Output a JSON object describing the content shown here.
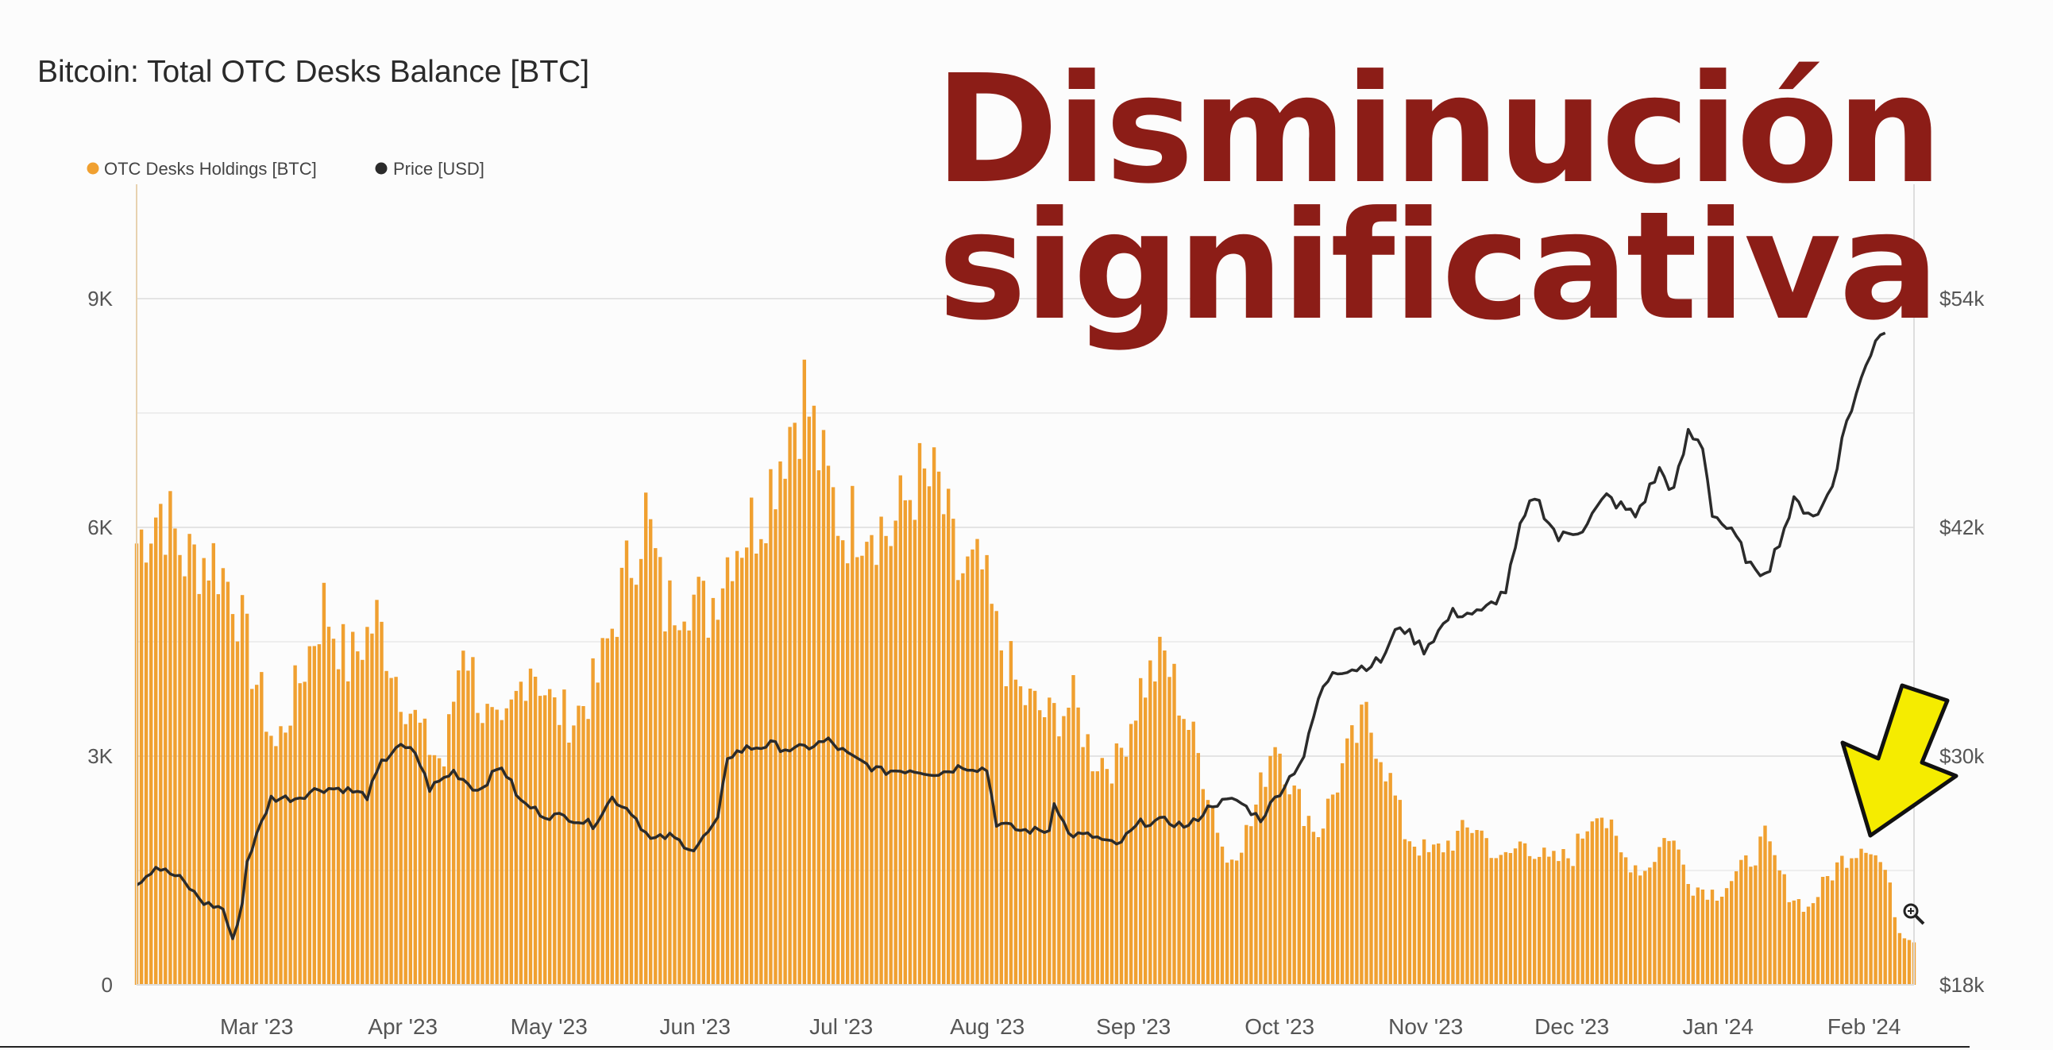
{
  "overlay": {
    "line1": "Disminución",
    "line2": "significativa"
  },
  "colors": {
    "bars": "#f0a030",
    "price_line": "#2b2b2b",
    "overlay_text": "#8c1d17",
    "arrow_fill": "#f5ec00",
    "grid": "#e4e4e4"
  },
  "icons": [
    "arrow-annotation-icon",
    "zoom-cursor-icon"
  ],
  "chart_data": {
    "type": "bar",
    "title": "Bitcoin: Total OTC Desks Balance [BTC]",
    "legend": {
      "placement": "top-left"
    },
    "grid": true,
    "x_ticks": [
      "Mar '23",
      "Apr '23",
      "May '23",
      "Jun '23",
      "Jul '23",
      "Aug '23",
      "Sep '23",
      "Oct '23",
      "Nov '23",
      "Dec '23",
      "Jan '24",
      "Feb '24"
    ],
    "y_left": {
      "ticks": [
        "0",
        "3K",
        "6K",
        "9K"
      ],
      "range": [
        0,
        10500
      ]
    },
    "y_right": {
      "ticks": [
        "$18k",
        "$30k",
        "$42k",
        "$54k"
      ],
      "range": [
        18000,
        60000
      ]
    },
    "x_range": [
      "2023-02-19",
      "2024-02-24"
    ],
    "series": [
      {
        "name": "OTC Desks Holdings [BTC]",
        "type": "bar",
        "axis": "left",
        "knots": [
          [
            "2023-02-19",
            5800
          ],
          [
            "2023-02-24",
            6300
          ],
          [
            "2023-03-01",
            5600
          ],
          [
            "2023-03-07",
            5600
          ],
          [
            "2023-03-11",
            5200
          ],
          [
            "2023-03-15",
            4200
          ],
          [
            "2023-03-20",
            3100
          ],
          [
            "2023-03-25",
            4000
          ],
          [
            "2023-03-30",
            5000
          ],
          [
            "2023-04-04",
            4200
          ],
          [
            "2023-04-10",
            4800
          ],
          [
            "2023-04-15",
            3900
          ],
          [
            "2023-04-20",
            3200
          ],
          [
            "2023-04-24",
            2900
          ],
          [
            "2023-04-28",
            4600
          ],
          [
            "2023-05-02",
            3600
          ],
          [
            "2023-05-06",
            3200
          ],
          [
            "2023-05-12",
            4300
          ],
          [
            "2023-05-17",
            3600
          ],
          [
            "2023-05-21",
            3500
          ],
          [
            "2023-05-26",
            4000
          ],
          [
            "2023-06-01",
            5400
          ],
          [
            "2023-06-05",
            6200
          ],
          [
            "2023-06-09",
            4900
          ],
          [
            "2023-06-13",
            5200
          ],
          [
            "2023-06-18",
            4900
          ],
          [
            "2023-06-23",
            5800
          ],
          [
            "2023-06-28",
            6100
          ],
          [
            "2023-07-01",
            6600
          ],
          [
            "2023-07-04",
            7200
          ],
          [
            "2023-07-08",
            7800
          ],
          [
            "2023-07-12",
            6700
          ],
          [
            "2023-07-16",
            6000
          ],
          [
            "2023-07-21",
            6200
          ],
          [
            "2023-07-26",
            5900
          ],
          [
            "2023-07-31",
            6600
          ],
          [
            "2023-08-05",
            6500
          ],
          [
            "2023-08-09",
            5400
          ],
          [
            "2023-08-14",
            5400
          ],
          [
            "2023-08-17",
            4600
          ],
          [
            "2023-08-22",
            3800
          ],
          [
            "2023-08-28",
            3500
          ],
          [
            "2023-09-02",
            3700
          ],
          [
            "2023-09-06",
            3000
          ],
          [
            "2023-09-11",
            2900
          ],
          [
            "2023-09-16",
            3900
          ],
          [
            "2023-09-21",
            4300
          ],
          [
            "2023-09-25",
            3600
          ],
          [
            "2023-09-30",
            2600
          ],
          [
            "2023-10-04",
            1600
          ],
          [
            "2023-10-09",
            2100
          ],
          [
            "2023-10-14",
            3300
          ],
          [
            "2023-10-18",
            2500
          ],
          [
            "2023-10-23",
            2000
          ],
          [
            "2023-10-29",
            3000
          ],
          [
            "2023-11-02",
            3500
          ],
          [
            "2023-11-05",
            3100
          ],
          [
            "2023-11-10",
            2000
          ],
          [
            "2023-11-15",
            1700
          ],
          [
            "2023-11-20",
            1900
          ],
          [
            "2023-11-25",
            2100
          ],
          [
            "2023-11-30",
            1600
          ],
          [
            "2023-12-05",
            1900
          ],
          [
            "2023-12-10",
            1600
          ],
          [
            "2023-12-15",
            1700
          ],
          [
            "2023-12-20",
            2400
          ],
          [
            "2023-12-25",
            1700
          ],
          [
            "2023-12-30",
            1500
          ],
          [
            "2024-01-04",
            2000
          ],
          [
            "2024-01-09",
            1300
          ],
          [
            "2024-01-14",
            1200
          ],
          [
            "2024-01-19",
            1500
          ],
          [
            "2024-01-24",
            1900
          ],
          [
            "2024-01-29",
            1200
          ],
          [
            "2024-02-02",
            1000
          ],
          [
            "2024-02-06",
            1400
          ],
          [
            "2024-02-10",
            1700
          ],
          [
            "2024-02-14",
            1900
          ],
          [
            "2024-02-18",
            1500
          ],
          [
            "2024-02-21",
            700
          ],
          [
            "2024-02-24",
            600
          ]
        ]
      },
      {
        "name": "Price [USD]",
        "type": "line",
        "axis": "right",
        "knots": [
          [
            "2023-02-19",
            23300
          ],
          [
            "2023-02-23",
            24200
          ],
          [
            "2023-02-28",
            23600
          ],
          [
            "2023-03-05",
            22300
          ],
          [
            "2023-03-09",
            22000
          ],
          [
            "2023-03-11",
            20300
          ],
          [
            "2023-03-13",
            22300
          ],
          [
            "2023-03-14",
            24500
          ],
          [
            "2023-03-17",
            26500
          ],
          [
            "2023-03-19",
            27800
          ],
          [
            "2023-03-24",
            27800
          ],
          [
            "2023-03-29",
            28300
          ],
          [
            "2023-04-03",
            28300
          ],
          [
            "2023-04-08",
            27900
          ],
          [
            "2023-04-11",
            29600
          ],
          [
            "2023-04-14",
            30500
          ],
          [
            "2023-04-18",
            30200
          ],
          [
            "2023-04-21",
            28300
          ],
          [
            "2023-04-26",
            29200
          ],
          [
            "2023-05-01",
            28200
          ],
          [
            "2023-05-06",
            29500
          ],
          [
            "2023-05-10",
            27600
          ],
          [
            "2023-05-15",
            26900
          ],
          [
            "2023-05-20",
            26800
          ],
          [
            "2023-05-25",
            26400
          ],
          [
            "2023-05-29",
            27800
          ],
          [
            "2023-06-02",
            27100
          ],
          [
            "2023-06-06",
            25600
          ],
          [
            "2023-06-10",
            25800
          ],
          [
            "2023-06-15",
            25100
          ],
          [
            "2023-06-20",
            26600
          ],
          [
            "2023-06-22",
            30000
          ],
          [
            "2023-06-26",
            30400
          ],
          [
            "2023-07-01",
            30600
          ],
          [
            "2023-07-06",
            30300
          ],
          [
            "2023-07-13",
            30800
          ],
          [
            "2023-07-18",
            29900
          ],
          [
            "2023-07-24",
            29200
          ],
          [
            "2023-07-30",
            29300
          ],
          [
            "2023-08-05",
            29100
          ],
          [
            "2023-08-10",
            29500
          ],
          [
            "2023-08-15",
            29300
          ],
          [
            "2023-08-17",
            26500
          ],
          [
            "2023-08-22",
            26100
          ],
          [
            "2023-08-28",
            26100
          ],
          [
            "2023-08-29",
            27700
          ],
          [
            "2023-09-01",
            25900
          ],
          [
            "2023-09-06",
            25800
          ],
          [
            "2023-09-11",
            25300
          ],
          [
            "2023-09-16",
            26500
          ],
          [
            "2023-09-21",
            26600
          ],
          [
            "2023-09-26",
            26300
          ],
          [
            "2023-10-01",
            27500
          ],
          [
            "2023-10-06",
            27700
          ],
          [
            "2023-10-11",
            26700
          ],
          [
            "2023-10-16",
            28500
          ],
          [
            "2023-10-20",
            30000
          ],
          [
            "2023-10-23",
            33000
          ],
          [
            "2023-10-26",
            34500
          ],
          [
            "2023-10-31",
            34600
          ],
          [
            "2023-11-05",
            35000
          ],
          [
            "2023-11-09",
            36900
          ],
          [
            "2023-11-14",
            35600
          ],
          [
            "2023-11-20",
            37500
          ],
          [
            "2023-11-26",
            37500
          ],
          [
            "2023-12-01",
            38700
          ],
          [
            "2023-12-04",
            41900
          ],
          [
            "2023-12-07",
            43700
          ],
          [
            "2023-12-12",
            41400
          ],
          [
            "2023-12-17",
            42000
          ],
          [
            "2023-12-22",
            43600
          ],
          [
            "2023-12-28",
            42600
          ],
          [
            "2024-01-02",
            45000
          ],
          [
            "2024-01-05",
            43900
          ],
          [
            "2024-01-08",
            46900
          ],
          [
            "2024-01-11",
            46300
          ],
          [
            "2024-01-13",
            42800
          ],
          [
            "2024-01-18",
            41400
          ],
          [
            "2024-01-22",
            39500
          ],
          [
            "2024-01-25",
            40000
          ],
          [
            "2024-01-30",
            43300
          ],
          [
            "2024-02-04",
            42600
          ],
          [
            "2024-02-07",
            44300
          ],
          [
            "2024-02-10",
            47600
          ],
          [
            "2024-02-13",
            49700
          ],
          [
            "2024-02-16",
            52000
          ],
          [
            "2024-02-18",
            52400
          ]
        ]
      }
    ]
  }
}
